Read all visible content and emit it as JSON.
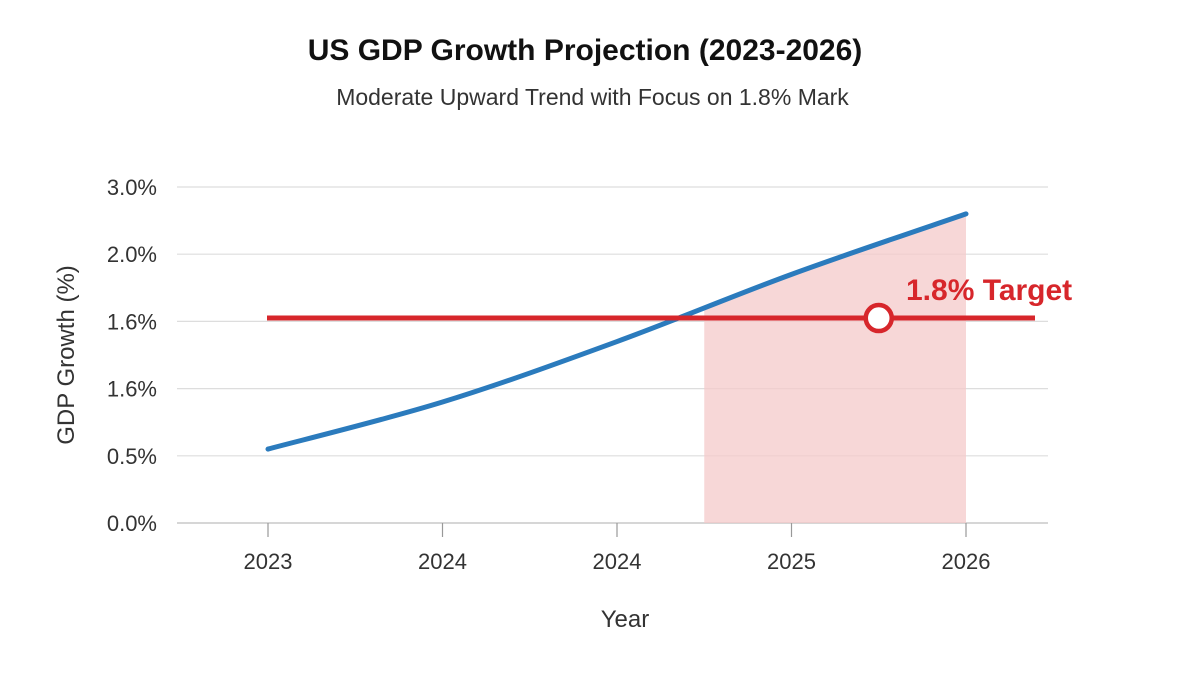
{
  "chart_data": {
    "type": "line",
    "title": "US GDP Growth Projection (2023-2026)",
    "subtitle": "Moderate Upward Trend with Focus on 1.8% Mark",
    "xlabel": "Year",
    "ylabel": "GDP Growth (%)",
    "x_tick_labels": [
      "2023",
      "2024",
      "2024",
      "2025",
      "2026"
    ],
    "y_tick_labels": [
      "0.0%",
      "0.5%",
      "1.6%",
      "1.6%",
      "2.0%",
      "3.0%"
    ],
    "grid": "horizontal",
    "series": [
      {
        "color": "#2b7bbd",
        "x": [
          0,
          1,
          2,
          3,
          4
        ],
        "y_levels": [
          1.1,
          1.8,
          2.7,
          3.7,
          4.6
        ]
      }
    ],
    "target": {
      "label": "1.8% Target",
      "y_level": 3.05,
      "marker_x": 3.5,
      "color": "#d7262b"
    },
    "shaded_region": {
      "x_start": 2.5,
      "x_end": 4.0,
      "color": "#f4c9c9"
    }
  }
}
